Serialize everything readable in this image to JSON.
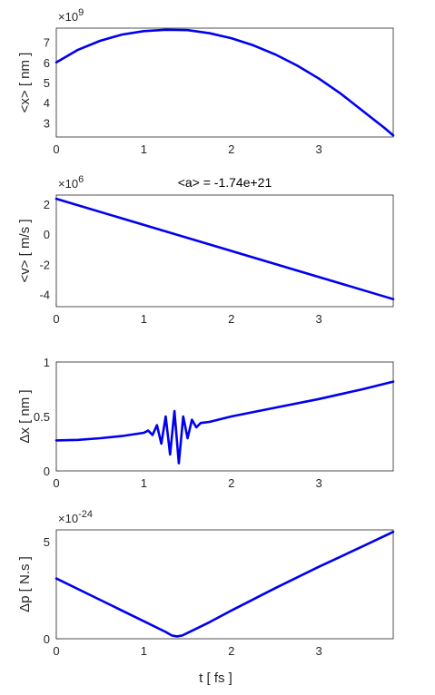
{
  "chart_data": [
    {
      "type": "line",
      "id": "x",
      "title": "",
      "xlabel": "",
      "ylabel": "<x>  [ nm ]",
      "exponent": "×10",
      "exponent_power": "9",
      "xlim": [
        0,
        3.85
      ],
      "ylim": [
        2.3,
        7.7
      ],
      "xticks": [
        0,
        1,
        2,
        3
      ],
      "yticks": [
        3,
        4,
        5,
        6,
        7
      ],
      "grid": true,
      "color": "#0000ee",
      "series": [
        {
          "x": [
            0,
            0.25,
            0.5,
            0.75,
            1.0,
            1.25,
            1.5,
            1.75,
            2.0,
            2.25,
            2.5,
            2.75,
            3.0,
            3.25,
            3.5,
            3.75,
            3.85
          ],
          "y": [
            6.0,
            6.63,
            7.07,
            7.38,
            7.55,
            7.62,
            7.6,
            7.45,
            7.2,
            6.85,
            6.4,
            5.85,
            5.2,
            4.45,
            3.6,
            2.75,
            2.38
          ]
        }
      ]
    },
    {
      "type": "line",
      "id": "v",
      "title": "<a> = -1.74e+21",
      "xlabel": "",
      "ylabel": "<v>  [ m/s ]",
      "exponent": "×10",
      "exponent_power": "6",
      "xlim": [
        0,
        3.85
      ],
      "ylim": [
        -4.8,
        2.6
      ],
      "xticks": [
        0,
        1,
        2,
        3
      ],
      "yticks": [
        -4,
        -2,
        0,
        2
      ],
      "grid": true,
      "color": "#0000ee",
      "series": [
        {
          "x": [
            0,
            3.85
          ],
          "y": [
            2.35,
            -4.3
          ]
        }
      ]
    },
    {
      "type": "line",
      "id": "dx",
      "title": "",
      "xlabel": "",
      "ylabel": "Δx  [ nm ]",
      "exponent": "",
      "exponent_power": "",
      "xlim": [
        0,
        3.85
      ],
      "ylim": [
        0,
        1
      ],
      "xticks": [
        0,
        1,
        2,
        3
      ],
      "yticks": [
        0,
        0.5,
        1
      ],
      "grid": true,
      "color": "#0000ee",
      "series": [
        {
          "x": [
            0,
            0.25,
            0.5,
            0.75,
            1.0,
            1.05,
            1.1,
            1.15,
            1.2,
            1.25,
            1.3,
            1.35,
            1.4,
            1.45,
            1.5,
            1.55,
            1.6,
            1.65,
            1.75,
            2.0,
            2.5,
            3.0,
            3.5,
            3.85
          ],
          "y": [
            0.28,
            0.285,
            0.3,
            0.32,
            0.35,
            0.37,
            0.33,
            0.42,
            0.25,
            0.5,
            0.15,
            0.55,
            0.07,
            0.5,
            0.3,
            0.47,
            0.4,
            0.44,
            0.45,
            0.5,
            0.58,
            0.66,
            0.75,
            0.82
          ]
        }
      ]
    },
    {
      "type": "line",
      "id": "dp",
      "title": "",
      "xlabel": "t  [ fs ]",
      "ylabel": "Δp  [ N.s ]",
      "exponent": "×10",
      "exponent_power": "-24",
      "xlim": [
        0,
        3.85
      ],
      "ylim": [
        0,
        5.6
      ],
      "xticks": [
        0,
        1,
        2,
        3
      ],
      "yticks": [
        0,
        5
      ],
      "grid": true,
      "color": "#0000ee",
      "series": [
        {
          "x": [
            0,
            0.5,
            1.0,
            1.25,
            1.32,
            1.38,
            1.44,
            1.5,
            1.75,
            2.0,
            2.5,
            3.0,
            3.5,
            3.85
          ],
          "y": [
            3.1,
            2.0,
            0.9,
            0.35,
            0.17,
            0.12,
            0.17,
            0.3,
            0.85,
            1.45,
            2.6,
            3.7,
            4.75,
            5.5
          ]
        }
      ]
    }
  ]
}
